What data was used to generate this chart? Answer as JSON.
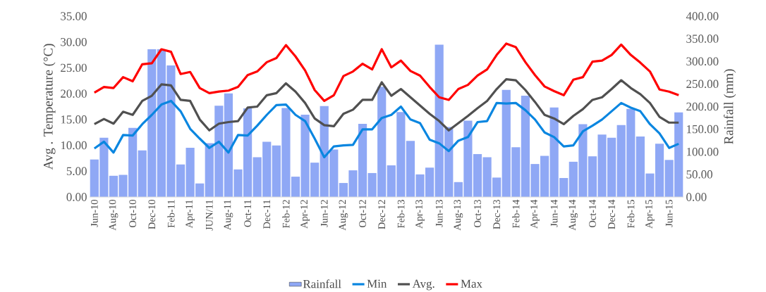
{
  "chart_data": {
    "type": "line",
    "ylabel": "Avg . Temperature (°C)",
    "y2label": "Rainfall (mm)",
    "categories": [
      "Jun-10",
      null,
      "Aug-10",
      null,
      "Oct-10",
      null,
      "Dec-10",
      null,
      "Feb-11",
      null,
      "Apr-11",
      null,
      "JUN/11",
      null,
      "Aug-11",
      null,
      "Oct-11",
      null,
      "Dec-11",
      null,
      "Feb-12",
      null,
      "Apr-12",
      null,
      "Jun-12",
      null,
      "Aug-12",
      null,
      "Oct-12",
      null,
      "Dec-12",
      null,
      "Feb-13",
      null,
      "Apr-13",
      null,
      "Jun-13",
      null,
      "Aug-13",
      null,
      "Oct-13",
      null,
      "Dec-13",
      null,
      "Feb-14",
      null,
      "Apr-14",
      null,
      "Jun-14",
      null,
      "Aug-14",
      null,
      "Oct-14",
      null,
      "Dec-14",
      null,
      "Feb-15",
      null,
      "Apr-15",
      null,
      "Jun-15",
      null
    ],
    "series": [
      {
        "name": "Rainfall",
        "type": "bar",
        "axis": "y2",
        "color": "#8fa8f5",
        "values": [
          83,
          131,
          47,
          49,
          153,
          103,
          327,
          327,
          291,
          72,
          109,
          30,
          119,
          202,
          229,
          61,
          196,
          88,
          122,
          114,
          197,
          45,
          182,
          76,
          201,
          105,
          31,
          59,
          162,
          53,
          244,
          70,
          188,
          124,
          50,
          65,
          337,
          155,
          33,
          169,
          95,
          88,
          43,
          237,
          110,
          224,
          73,
          91,
          198,
          42,
          78,
          161,
          90,
          138,
          131,
          159,
          195,
          134,
          52,
          118,
          82,
          187
        ]
      },
      {
        "name": "Min",
        "color": "#0a86e0",
        "values": [
          9.4,
          10.7,
          8.6,
          12.0,
          11.9,
          14.1,
          15.9,
          17.9,
          18.6,
          16.6,
          13.2,
          11.3,
          9.5,
          10.7,
          8.6,
          12.0,
          11.9,
          13.8,
          15.9,
          17.8,
          17.9,
          15.9,
          14.7,
          11.3,
          7.7,
          9.8,
          10.0,
          10.1,
          13.1,
          13.1,
          15.3,
          15.9,
          17.5,
          15.0,
          14.3,
          11.1,
          10.4,
          8.9,
          10.9,
          11.6,
          14.5,
          14.7,
          18.2,
          18.1,
          18.2,
          16.8,
          15.0,
          12.5,
          11.6,
          9.8,
          10.0,
          12.7,
          13.8,
          15.0,
          16.6,
          18.2,
          17.3,
          16.6,
          14.1,
          12.3,
          9.5,
          10.3
        ]
      },
      {
        "name": "Avg.",
        "color": "#505050",
        "values": [
          14.1,
          15.1,
          14.2,
          16.5,
          15.9,
          18.6,
          19.6,
          21.8,
          21.6,
          18.8,
          18.6,
          15.0,
          12.9,
          14.2,
          14.5,
          14.7,
          17.3,
          17.5,
          19.7,
          20.1,
          22.0,
          20.4,
          18.2,
          15.2,
          13.9,
          13.7,
          16.1,
          16.9,
          18.8,
          18.8,
          22.2,
          19.6,
          20.9,
          19.3,
          17.7,
          16.1,
          14.7,
          12.9,
          14.3,
          15.7,
          17.2,
          18.6,
          20.9,
          22.8,
          22.6,
          20.7,
          18.4,
          15.9,
          15.2,
          14.1,
          15.7,
          17.0,
          18.8,
          19.3,
          20.9,
          22.6,
          21.1,
          19.9,
          18.2,
          15.5,
          14.4,
          14.4
        ]
      },
      {
        "name": "Max",
        "color": "#ff0000",
        "values": [
          20.2,
          21.3,
          21.1,
          23.2,
          22.4,
          25.7,
          25.9,
          28.6,
          28.1,
          23.8,
          24.2,
          21.1,
          20.1,
          20.4,
          20.6,
          21.3,
          23.6,
          24.3,
          26.1,
          26.9,
          29.4,
          27.2,
          24.5,
          20.7,
          18.6,
          19.7,
          23.4,
          24.3,
          25.8,
          24.7,
          28.6,
          25.1,
          26.4,
          24.4,
          23.5,
          21.3,
          19.3,
          18.8,
          20.9,
          21.7,
          23.5,
          24.7,
          27.5,
          29.7,
          29.0,
          26.1,
          23.6,
          21.4,
          20.5,
          19.7,
          22.7,
          23.2,
          26.2,
          26.4,
          27.5,
          29.5,
          27.5,
          26.0,
          24.3,
          20.8,
          20.4,
          19.7
        ]
      }
    ],
    "ylim": [
      0,
      35
    ],
    "yticks": [
      {
        "value": 0,
        "label": "0.00"
      },
      {
        "value": 5,
        "label": "5.00"
      },
      {
        "value": 10,
        "label": "10.00"
      },
      {
        "value": 15,
        "label": "15.00"
      },
      {
        "value": 20,
        "label": "20.00"
      },
      {
        "value": 25,
        "label": "25.00"
      },
      {
        "value": 30,
        "label": "30.00"
      },
      {
        "value": 35,
        "label": "35.00"
      }
    ],
    "y2lim": [
      0,
      400
    ],
    "y2ticks": [
      {
        "value": 0,
        "label": "0.00"
      },
      {
        "value": 50,
        "label": "50.00"
      },
      {
        "value": 100,
        "label": "100.00"
      },
      {
        "value": 150,
        "label": "150.00"
      },
      {
        "value": 200,
        "label": "200.00"
      },
      {
        "value": 250,
        "label": "250.00"
      },
      {
        "value": 300,
        "label": "300.00"
      },
      {
        "value": 350,
        "label": "350.00"
      },
      {
        "value": 400,
        "label": "400.00"
      }
    ],
    "legend": "bottom",
    "line_style": "solid"
  }
}
